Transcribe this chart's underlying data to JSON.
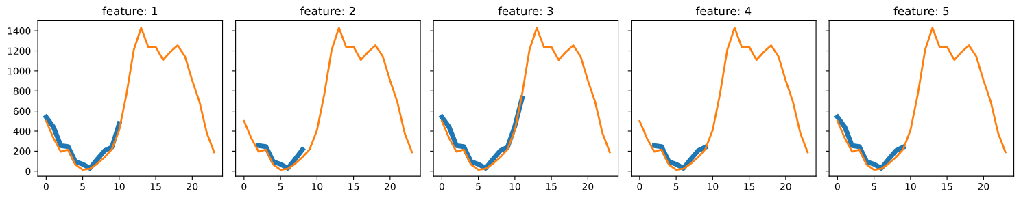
{
  "chart_data": [
    {
      "type": "line",
      "title": "feature: 1",
      "xlim": [
        -1.15,
        24.15
      ],
      "ylim": [
        -50,
        1500
      ],
      "xticks": [
        0,
        5,
        10,
        15,
        20
      ],
      "yticks": [
        0,
        200,
        400,
        600,
        800,
        1000,
        1200,
        1400
      ],
      "grid": false,
      "series": [
        {
          "color": "#1f77b4",
          "x": [
            0,
            1,
            2,
            3,
            4,
            5,
            6,
            7,
            8,
            9,
            10
          ],
          "values": [
            540,
            440,
            255,
            245,
            95,
            70,
            30,
            120,
            205,
            240,
            475
          ]
        },
        {
          "color": "#ff7f0e",
          "x": [
            0,
            1,
            2,
            3,
            4,
            5,
            6,
            7,
            8,
            9,
            10,
            11,
            12,
            13,
            14,
            15,
            16,
            17,
            18,
            19,
            20,
            21,
            22,
            23
          ],
          "values": [
            500,
            330,
            195,
            215,
            65,
            15,
            25,
            75,
            140,
            220,
            410,
            770,
            1210,
            1430,
            1235,
            1240,
            1110,
            1190,
            1255,
            1145,
            905,
            690,
            380,
            190
          ]
        }
      ]
    },
    {
      "type": "line",
      "title": "feature: 2",
      "xlim": [
        -1.15,
        24.15
      ],
      "ylim": [
        -50,
        1500
      ],
      "xticks": [
        0,
        5,
        10,
        15,
        20
      ],
      "yticks": [
        0,
        200,
        400,
        600,
        800,
        1000,
        1200,
        1400
      ],
      "tick_labels": "x",
      "grid": false,
      "series": [
        {
          "color": "#1f77b4",
          "x": [
            2,
            3,
            4,
            5,
            6,
            7,
            8
          ],
          "values": [
            255,
            245,
            95,
            70,
            30,
            120,
            215
          ]
        },
        {
          "color": "#ff7f0e",
          "x": [
            0,
            1,
            2,
            3,
            4,
            5,
            6,
            7,
            8,
            9,
            10,
            11,
            12,
            13,
            14,
            15,
            16,
            17,
            18,
            19,
            20,
            21,
            22,
            23
          ],
          "values": [
            500,
            330,
            195,
            215,
            65,
            15,
            25,
            75,
            140,
            220,
            410,
            770,
            1210,
            1430,
            1235,
            1240,
            1110,
            1190,
            1255,
            1145,
            905,
            690,
            380,
            190
          ]
        }
      ]
    },
    {
      "type": "line",
      "title": "feature: 3",
      "xlim": [
        -1.15,
        24.15
      ],
      "ylim": [
        -50,
        1500
      ],
      "xticks": [
        0,
        5,
        10,
        15,
        20
      ],
      "yticks": [
        0,
        200,
        400,
        600,
        800,
        1000,
        1200,
        1400
      ],
      "tick_labels": "x",
      "grid": false,
      "series": [
        {
          "color": "#1f77b4",
          "x": [
            0,
            1,
            2,
            3,
            4,
            5,
            6,
            7,
            8,
            9,
            10,
            11
          ],
          "values": [
            540,
            440,
            255,
            245,
            95,
            70,
            30,
            120,
            205,
            240,
            450,
            730
          ]
        },
        {
          "color": "#ff7f0e",
          "x": [
            0,
            1,
            2,
            3,
            4,
            5,
            6,
            7,
            8,
            9,
            10,
            11,
            12,
            13,
            14,
            15,
            16,
            17,
            18,
            19,
            20,
            21,
            22,
            23
          ],
          "values": [
            500,
            330,
            195,
            215,
            65,
            15,
            25,
            75,
            140,
            220,
            410,
            770,
            1210,
            1430,
            1235,
            1240,
            1110,
            1190,
            1255,
            1145,
            905,
            690,
            380,
            190
          ]
        }
      ]
    },
    {
      "type": "line",
      "title": "feature: 4",
      "xlim": [
        -1.15,
        24.15
      ],
      "ylim": [
        -50,
        1500
      ],
      "xticks": [
        0,
        5,
        10,
        15,
        20
      ],
      "yticks": [
        0,
        200,
        400,
        600,
        800,
        1000,
        1200,
        1400
      ],
      "tick_labels": "x",
      "grid": false,
      "series": [
        {
          "color": "#1f77b4",
          "x": [
            2,
            3,
            4,
            5,
            6,
            7,
            8,
            9
          ],
          "values": [
            255,
            245,
            95,
            70,
            30,
            120,
            205,
            240
          ]
        },
        {
          "color": "#ff7f0e",
          "x": [
            0,
            1,
            2,
            3,
            4,
            5,
            6,
            7,
            8,
            9,
            10,
            11,
            12,
            13,
            14,
            15,
            16,
            17,
            18,
            19,
            20,
            21,
            22,
            23
          ],
          "values": [
            500,
            330,
            195,
            215,
            65,
            15,
            25,
            75,
            140,
            220,
            410,
            770,
            1210,
            1430,
            1235,
            1240,
            1110,
            1190,
            1255,
            1145,
            905,
            690,
            380,
            190
          ]
        }
      ]
    },
    {
      "type": "line",
      "title": "feature: 5",
      "xlim": [
        -1.15,
        24.15
      ],
      "ylim": [
        -50,
        1500
      ],
      "xticks": [
        0,
        5,
        10,
        15,
        20
      ],
      "yticks": [
        0,
        200,
        400,
        600,
        800,
        1000,
        1200,
        1400
      ],
      "tick_labels": "x",
      "grid": false,
      "series": [
        {
          "color": "#1f77b4",
          "x": [
            0,
            1,
            2,
            3,
            4,
            5,
            6,
            7,
            8,
            9
          ],
          "values": [
            540,
            440,
            255,
            245,
            95,
            70,
            30,
            120,
            205,
            240
          ]
        },
        {
          "color": "#ff7f0e",
          "x": [
            0,
            1,
            2,
            3,
            4,
            5,
            6,
            7,
            8,
            9,
            10,
            11,
            12,
            13,
            14,
            15,
            16,
            17,
            18,
            19,
            20,
            21,
            22,
            23
          ],
          "values": [
            500,
            330,
            195,
            215,
            65,
            15,
            25,
            75,
            140,
            220,
            410,
            770,
            1210,
            1430,
            1235,
            1240,
            1110,
            1190,
            1255,
            1145,
            905,
            690,
            380,
            190
          ]
        }
      ]
    }
  ]
}
